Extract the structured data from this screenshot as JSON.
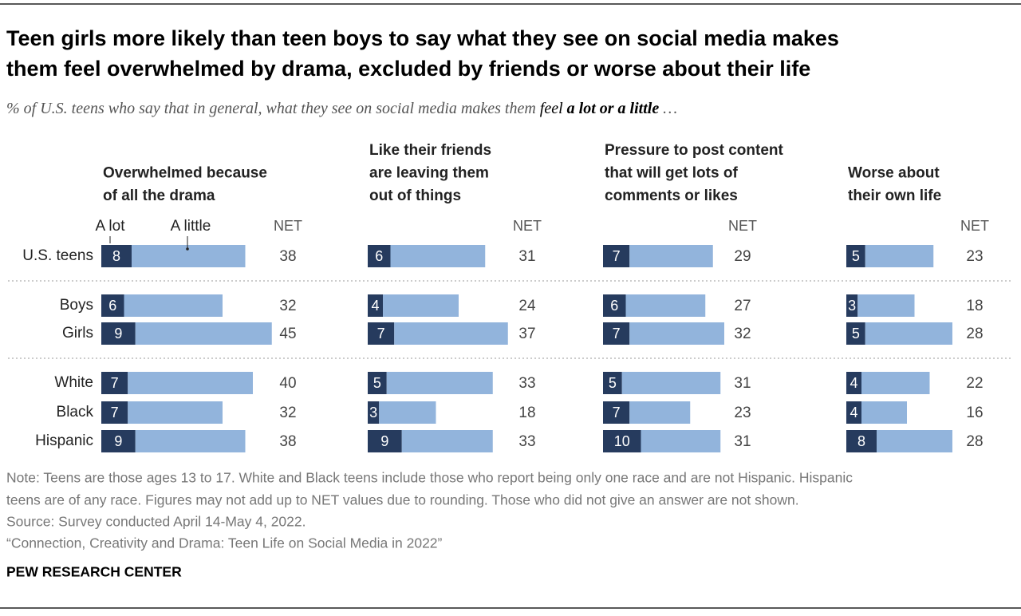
{
  "title": [
    "Teen girls more likely than teen boys to say what they see on social media makes",
    "them feel overwhelmed by drama, excluded by friends or worse about their life"
  ],
  "subtitle": [
    "% of U.S. teens who say that in general, what they see on social media makes them ",
    "feel",
    " a lot or a little",
    " …"
  ],
  "chart_data": [
    {
      "type": "bar",
      "stacked": true,
      "orientation": "horizontal",
      "title": [
        "Overwhelmed because",
        "of all the drama"
      ],
      "categories": [
        "U.S. teens",
        "Boys",
        "Girls",
        "White",
        "Black",
        "Hispanic"
      ],
      "series": [
        {
          "name": "A lot",
          "color": "#263b5e",
          "values": [
            8,
            6,
            9,
            7,
            7,
            9
          ]
        },
        {
          "name": "A little",
          "color": "#92b4dc",
          "values": [
            30,
            26,
            36,
            33,
            25,
            29
          ]
        }
      ],
      "net_label": "NET",
      "net": [
        38,
        32,
        45,
        40,
        32,
        38
      ]
    },
    {
      "type": "bar",
      "stacked": true,
      "orientation": "horizontal",
      "title": [
        "Like their friends",
        "are leaving them",
        "out of things"
      ],
      "series": [
        {
          "color": "#263b5e",
          "values": [
            6,
            4,
            7,
            5,
            3,
            9
          ]
        },
        {
          "color": "#92b4dc",
          "values": [
            25,
            20,
            30,
            28,
            15,
            24
          ]
        }
      ],
      "net_label": "NET",
      "net": [
        31,
        24,
        37,
        33,
        18,
        33
      ]
    },
    {
      "type": "bar",
      "stacked": true,
      "orientation": "horizontal",
      "title": [
        "Pressure to post content",
        "that will get lots of",
        "comments or likes"
      ],
      "series": [
        {
          "color": "#263b5e",
          "values": [
            7,
            6,
            7,
            5,
            7,
            10
          ]
        },
        {
          "color": "#92b4dc",
          "values": [
            22,
            21,
            25,
            26,
            16,
            21
          ]
        }
      ],
      "net_label": "NET",
      "net": [
        29,
        27,
        32,
        31,
        23,
        31
      ]
    },
    {
      "type": "bar",
      "stacked": true,
      "orientation": "horizontal",
      "title": [
        "Worse about",
        "their own life"
      ],
      "series": [
        {
          "color": "#263b5e",
          "values": [
            5,
            3,
            5,
            4,
            4,
            8
          ]
        },
        {
          "color": "#92b4dc",
          "values": [
            18,
            15,
            23,
            18,
            12,
            20
          ]
        }
      ],
      "net_label": "NET",
      "net": [
        23,
        18,
        28,
        22,
        16,
        28
      ]
    }
  ],
  "note": [
    "Note: Teens are those ages 13 to 17. White and Black teens include those who report being only one race and are not Hispanic. Hispanic",
    "teens are of any race. Figures may not add up to NET values due to rounding. Those who did not give an answer are not shown."
  ],
  "source": "Source: Survey conducted April 14-May 4, 2022.",
  "report": "“Connection, Creativity and Drama: Teen Life on Social Media in 2022”",
  "brand": "PEW RESEARCH CENTER"
}
